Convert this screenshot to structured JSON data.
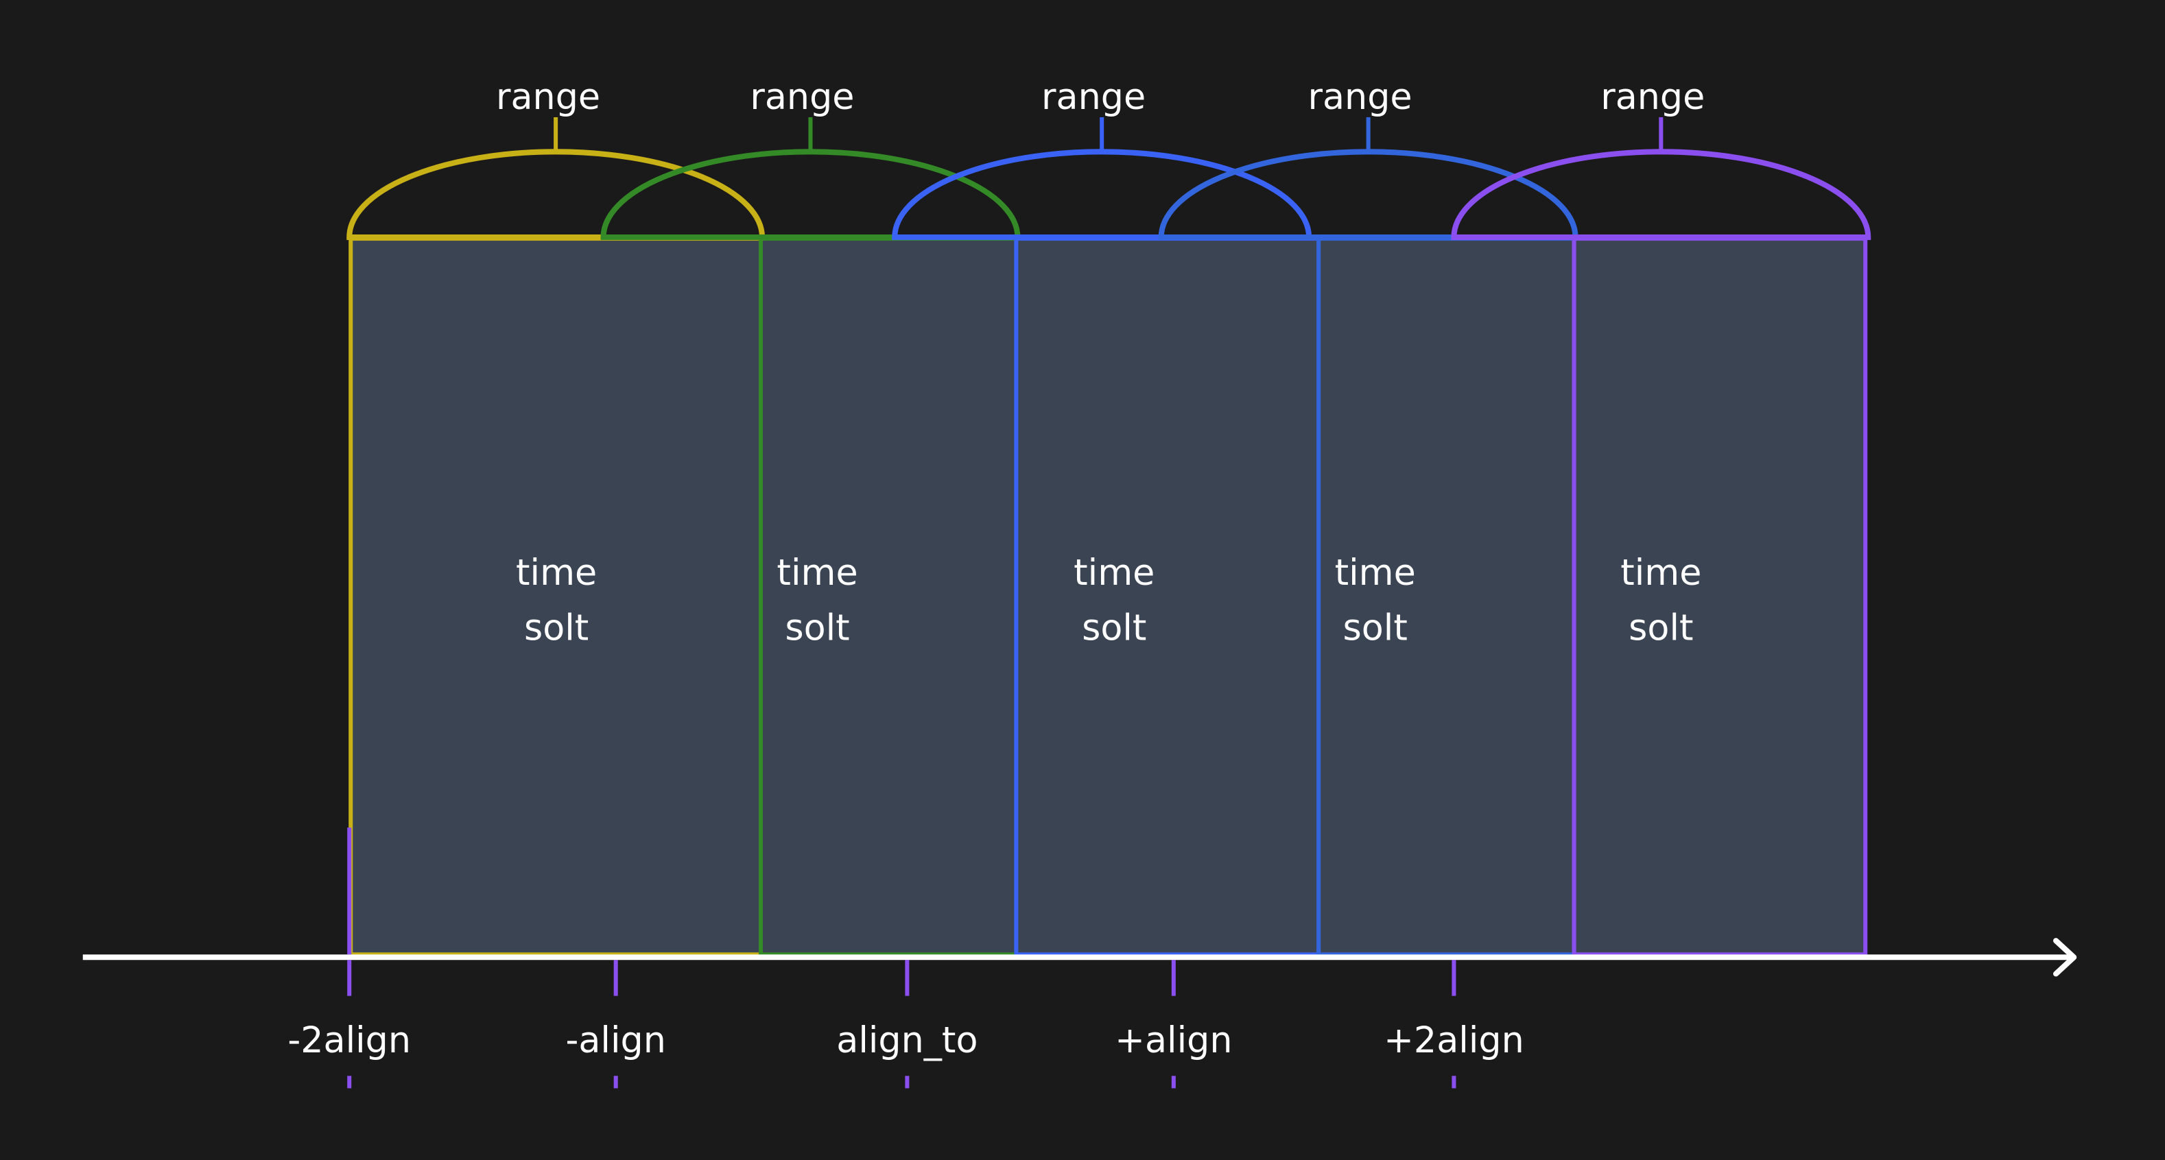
{
  "colors": {
    "background": "#1a1a1a",
    "slot_fill": "#3b4452",
    "axis": "#ffffff",
    "tick": "#8b4ff0"
  },
  "slots": [
    {
      "range_label": "range",
      "text_line1": "time",
      "text_line2": "solt",
      "color": "#c8b117"
    },
    {
      "range_label": "range",
      "text_line1": "time",
      "text_line2": "solt",
      "color": "#348a26"
    },
    {
      "range_label": "range",
      "text_line1": "time",
      "text_line2": "solt",
      "color": "#3a63f5"
    },
    {
      "range_label": "range",
      "text_line1": "time",
      "text_line2": "solt",
      "color": "#3366dd"
    },
    {
      "range_label": "range",
      "text_line1": "time",
      "text_line2": "solt",
      "color": "#8b4ff0"
    }
  ],
  "ticks": [
    {
      "label": "-2align"
    },
    {
      "label": "-align"
    },
    {
      "label": "align_to"
    },
    {
      "label": "+align"
    },
    {
      "label": "+2align"
    }
  ]
}
